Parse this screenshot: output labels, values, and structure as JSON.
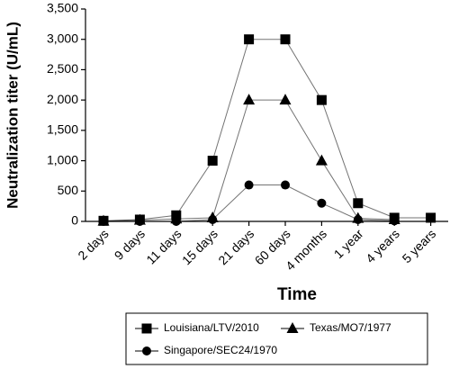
{
  "chart_data": {
    "type": "line",
    "xlabel": "Time",
    "ylabel": "Neutralization titer (U/mL)",
    "categories": [
      "2 days",
      "9 days",
      "11 days",
      "15 days",
      "21 days",
      "60 days",
      "4 months",
      "1 year",
      "4 years",
      "5 years"
    ],
    "series": [
      {
        "name": "Louisiana/LTV/2010",
        "color": "#000000",
        "marker": "square",
        "values": [
          10,
          30,
          100,
          1000,
          3000,
          3000,
          2000,
          300,
          60,
          60
        ]
      },
      {
        "name": "Texas/MO7/1977",
        "color": "#000000",
        "marker": "triangle",
        "values": [
          5,
          20,
          40,
          60,
          2000,
          2000,
          1000,
          50,
          30,
          null
        ]
      },
      {
        "name": "Singapore/SEC24/1970",
        "color": "#000000",
        "marker": "circle",
        "values": [
          0,
          0,
          0,
          30,
          600,
          600,
          300,
          30,
          10,
          null
        ]
      }
    ],
    "ylim": [
      0,
      3500
    ],
    "yticks": [
      0,
      500,
      {
        "value": 1000,
        "label": "1,000"
      },
      {
        "value": 1500,
        "label": "1,500"
      },
      {
        "value": 2000,
        "label": "2,000"
      },
      {
        "value": 2500,
        "label": "2,500"
      },
      {
        "value": 3000,
        "label": "3,000"
      },
      {
        "value": 3500,
        "label": "3,500"
      }
    ]
  }
}
